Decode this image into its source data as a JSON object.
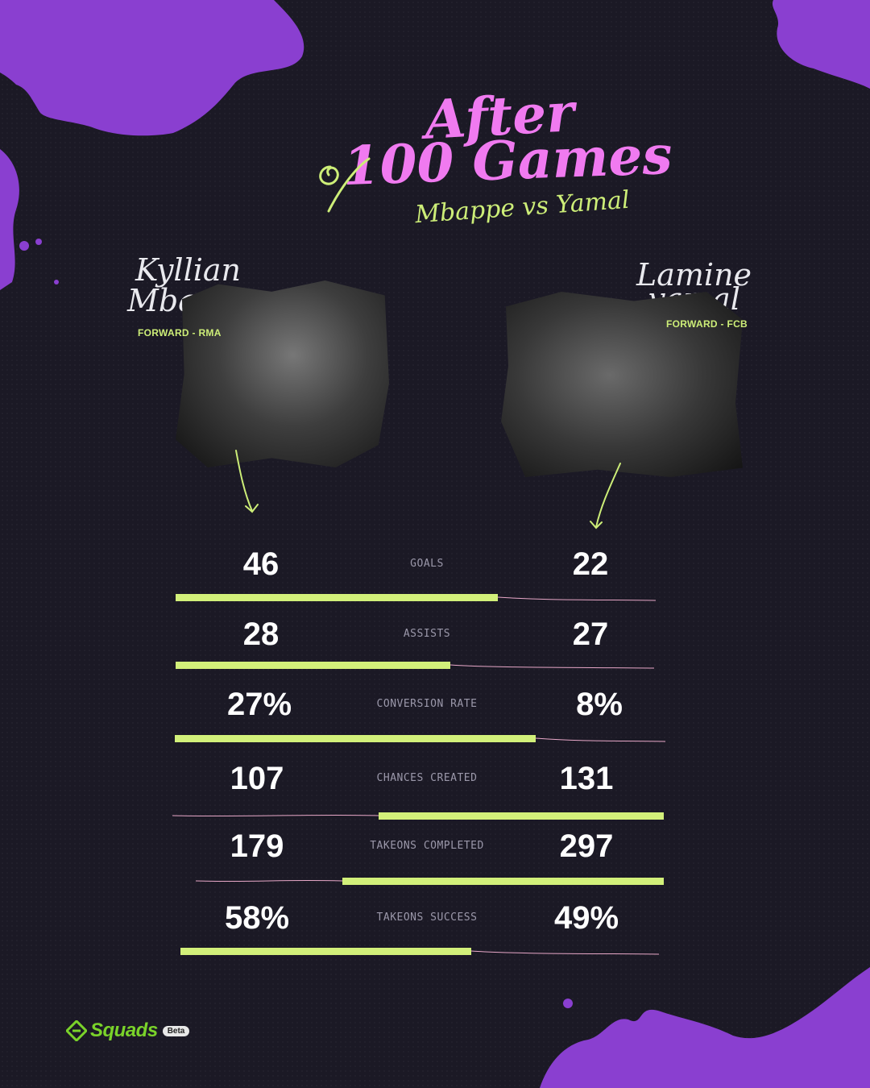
{
  "header": {
    "title_line1": "After",
    "title_line2": "100 Games",
    "subtitle": "Mbappe vs Yamal"
  },
  "players": {
    "left": {
      "first": "Kyllian",
      "last": "Mbappe",
      "position": "FORWARD - RMA"
    },
    "right": {
      "first": "Lamine",
      "last": "yamal",
      "position": "FORWARD - FCB"
    }
  },
  "stats": [
    {
      "label": "GOALS",
      "left": "46",
      "right": "22",
      "left_value": 46,
      "right_value": 22,
      "leader": "left"
    },
    {
      "label": "ASSISTS",
      "left": "28",
      "right": "27",
      "left_value": 28,
      "right_value": 27,
      "leader": "left"
    },
    {
      "label": "CONVERSION RATE",
      "left": "27%",
      "right": "8%",
      "left_value": 27,
      "right_value": 8,
      "leader": "left"
    },
    {
      "label": "CHANCES CREATED",
      "left": "107",
      "right": "131",
      "left_value": 107,
      "right_value": 131,
      "leader": "right"
    },
    {
      "label": "TAKEONS COMPLETED",
      "left": "179",
      "right": "297",
      "left_value": 179,
      "right_value": 297,
      "leader": "right"
    },
    {
      "label": "TAKEONS SUCCESS",
      "left": "58%",
      "right": "49%",
      "left_value": 58,
      "right_value": 49,
      "leader": "left"
    }
  ],
  "brand": {
    "name": "Squads",
    "badge": "Beta"
  },
  "colors": {
    "background": "#1b1925",
    "splash": "#8a3fd0",
    "title": "#f07af0",
    "accent": "#d2f07a",
    "thin_line": "#e8a8c8",
    "logo": "#7ad32a"
  },
  "icons": [
    "arrow-down-icon",
    "squiggle-icon",
    "squads-logo-icon"
  ]
}
